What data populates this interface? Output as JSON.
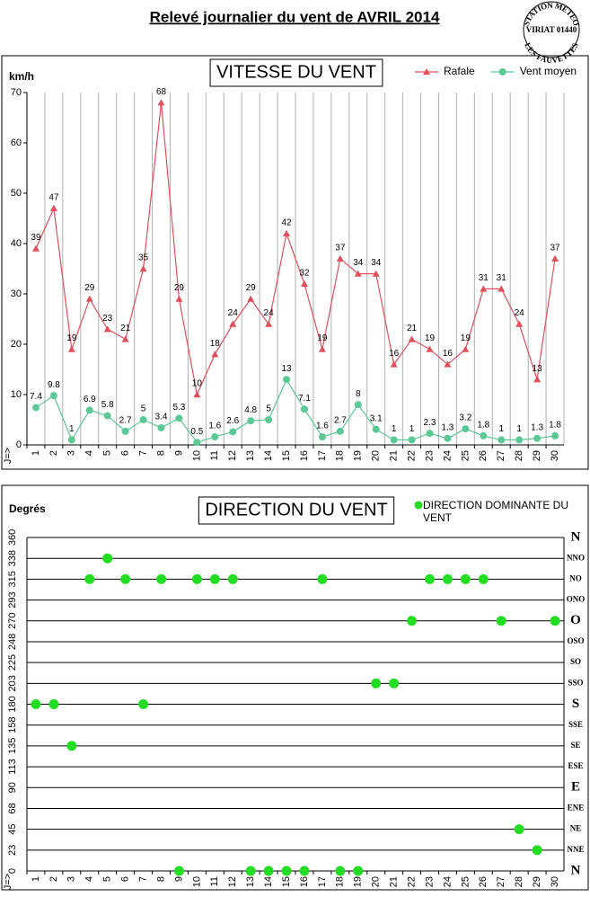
{
  "header": {
    "title": "Relevé journalier du vent de AVRIL 2014",
    "stamp": [
      "STATION METEO",
      "VIRIAT 01440",
      "LES FAUVETTES"
    ]
  },
  "chart_data": [
    {
      "type": "line",
      "title": "VITESSE DU VENT",
      "ylabel": "km/h",
      "xlabel": "J=>",
      "categories": [
        "1",
        "2",
        "3",
        "4",
        "5",
        "6",
        "7",
        "8",
        "9",
        "10",
        "11",
        "12",
        "13",
        "14",
        "15",
        "16",
        "17",
        "18",
        "19",
        "20",
        "21",
        "22",
        "23",
        "24",
        "25",
        "26",
        "27",
        "28",
        "29",
        "30"
      ],
      "series": [
        {
          "name": "Rafale",
          "color": "#e0505a",
          "marker": "triangle",
          "values": [
            39,
            47,
            19,
            29,
            23,
            21,
            35,
            68,
            29,
            10,
            18,
            24,
            29,
            24,
            42,
            32,
            19,
            37,
            34,
            34,
            16,
            21,
            19,
            16,
            19,
            31,
            31,
            24,
            13,
            37
          ]
        },
        {
          "name": "Vent moyen",
          "color": "#5cc896",
          "marker": "circle",
          "values": [
            7.4,
            9.8,
            1,
            6.9,
            5.8,
            2.7,
            5,
            3.4,
            5.3,
            0.5,
            1.6,
            2.6,
            4.8,
            5,
            13,
            7.1,
            1.6,
            2.7,
            8,
            3.1,
            1,
            1,
            2.3,
            1.3,
            3.2,
            1.8,
            1,
            1,
            1.3,
            1.8
          ]
        }
      ],
      "ylim": [
        0,
        70
      ],
      "yticks": [
        0,
        10,
        20,
        30,
        40,
        50,
        60,
        70
      ],
      "grid": "x",
      "legend": "top-right"
    },
    {
      "type": "scatter",
      "title": "DIRECTION DU VENT",
      "ylabel": "Degrés",
      "xlabel": "J=>",
      "categories": [
        "1",
        "2",
        "3",
        "4",
        "5",
        "6",
        "7",
        "8",
        "9",
        "10",
        "11",
        "12",
        "13",
        "14",
        "15",
        "16",
        "17",
        "18",
        "19",
        "20",
        "21",
        "22",
        "23",
        "24",
        "25",
        "26",
        "27",
        "28",
        "29",
        "30"
      ],
      "series": [
        {
          "name": "DIRECTION DOMINANTE DU VENT",
          "color": "#22dd22",
          "values": [
            180,
            180,
            135,
            315,
            337.5,
            315,
            180,
            315,
            0,
            315,
            315,
            315,
            0,
            0,
            0,
            0,
            315,
            0,
            0,
            202.5,
            202.5,
            270,
            315,
            315,
            315,
            315,
            270,
            45,
            22.5,
            270
          ]
        }
      ],
      "ylim": [
        0,
        360
      ],
      "yticks": [
        0,
        {
          "value": 22.5,
          "label": "23"
        },
        45,
        {
          "value": 67.5,
          "label": "68"
        },
        90,
        {
          "value": 112.5,
          "label": "113"
        },
        135,
        {
          "value": 157.5,
          "label": "158"
        },
        180,
        {
          "value": 202.5,
          "label": "203"
        },
        225,
        {
          "value": 247.5,
          "label": "248"
        },
        270,
        {
          "value": 292.5,
          "label": "293"
        },
        315,
        {
          "value": 337.5,
          "label": "338"
        },
        360
      ],
      "y2lim": [
        0,
        360
      ],
      "y2ticks": [
        {
          "value": 0,
          "label": "N"
        },
        {
          "value": 22.5,
          "label": "NNE"
        },
        {
          "value": 45,
          "label": "NE"
        },
        {
          "value": 67.5,
          "label": "ENE"
        },
        {
          "value": 90,
          "label": "E"
        },
        {
          "value": 112.5,
          "label": "ESE"
        },
        {
          "value": 135,
          "label": "SE"
        },
        {
          "value": 157.5,
          "label": "SSE"
        },
        {
          "value": 180,
          "label": "S"
        },
        {
          "value": 202.5,
          "label": "SSO"
        },
        {
          "value": 225,
          "label": "SO"
        },
        {
          "value": 247.5,
          "label": "OSO"
        },
        {
          "value": 270,
          "label": "O"
        },
        {
          "value": 292.5,
          "label": "ONO"
        },
        {
          "value": 315,
          "label": "NO"
        },
        {
          "value": 337.5,
          "label": "NNO"
        },
        {
          "value": 360,
          "label": "N"
        }
      ],
      "grid": "y",
      "legend": "top-right"
    }
  ]
}
